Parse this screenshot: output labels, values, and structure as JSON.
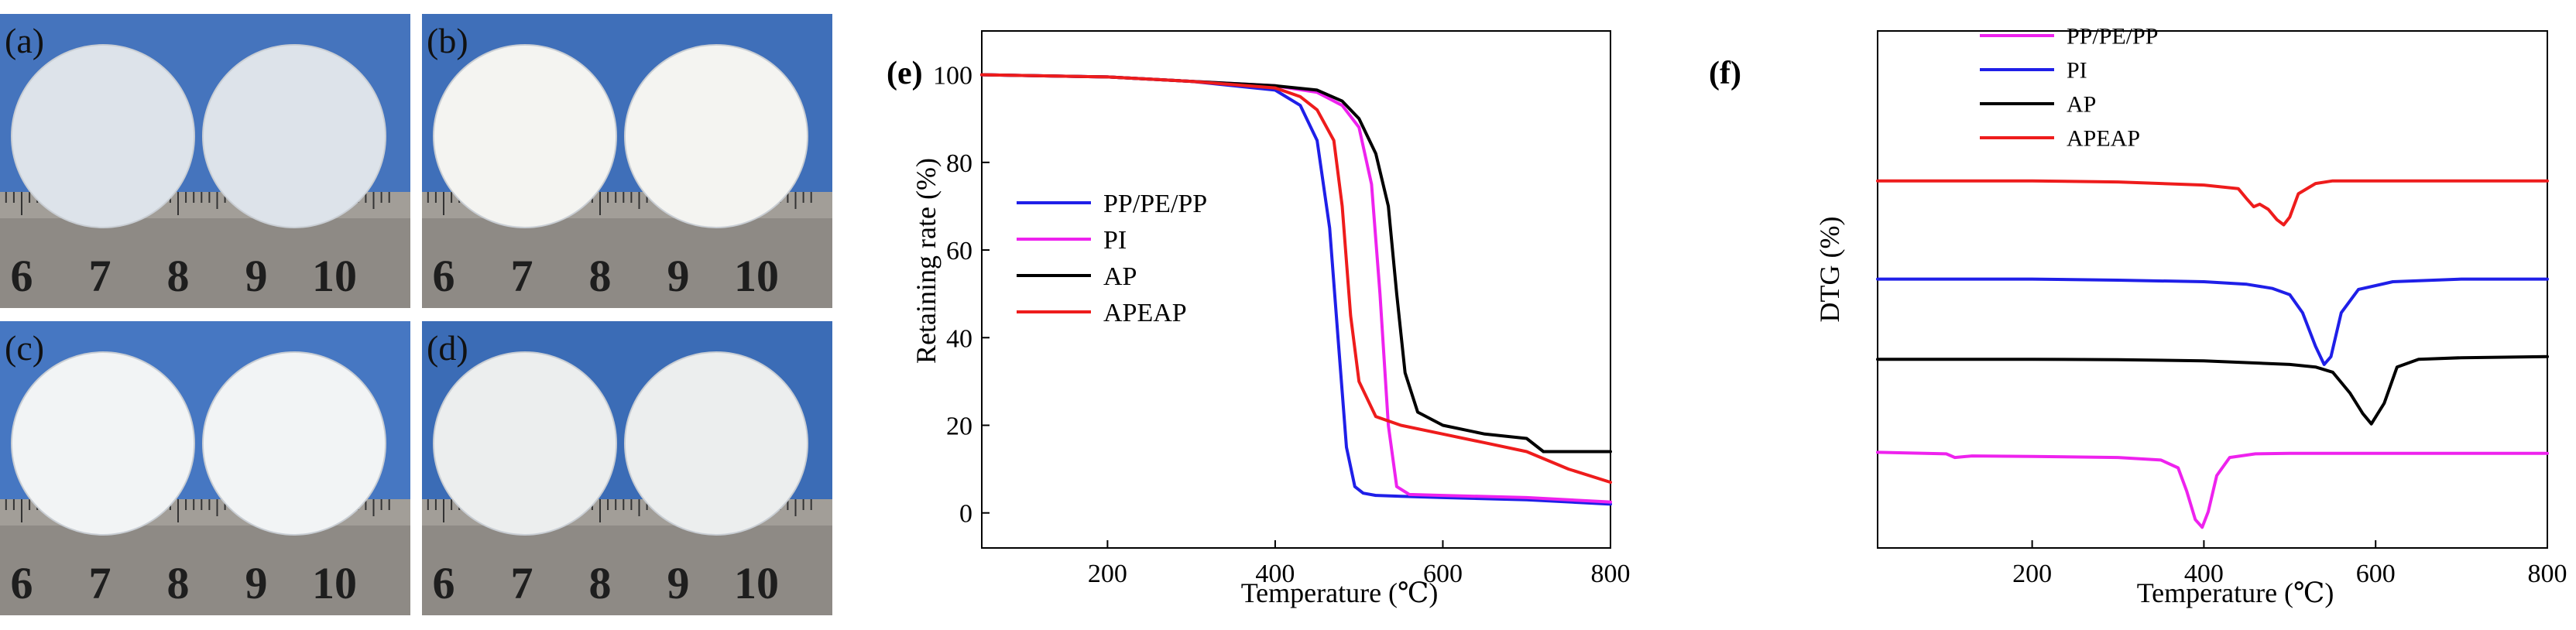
{
  "photos": [
    {
      "label": "(a)",
      "ruler_numbers": [
        "6",
        "7",
        "8",
        "9",
        "10"
      ],
      "bg": "#4574bd",
      "disc": "#dde3ea"
    },
    {
      "label": "(b)",
      "ruler_numbers": [
        "6",
        "7",
        "8",
        "9",
        "10"
      ],
      "bg": "#3f6fb9",
      "disc": "#f4f4f1"
    },
    {
      "label": "(c)",
      "ruler_numbers": [
        "6",
        "7",
        "8",
        "9",
        "10"
      ],
      "bg": "#4677c2",
      "disc": "#f2f4f5"
    },
    {
      "label": "(d)",
      "ruler_numbers": [
        "6",
        "7",
        "8",
        "9",
        "10"
      ],
      "bg": "#3b6cb6",
      "disc": "#eceeee"
    }
  ],
  "chart_data": [
    {
      "panel_label": "(e)",
      "type": "line",
      "title": "",
      "xlabel": "Temperature (℃)",
      "ylabel": "Retaining rate (%)",
      "xlim": [
        50,
        800
      ],
      "ylim": [
        -8,
        110
      ],
      "xticks": [
        200,
        400,
        600,
        800
      ],
      "yticks": [
        0,
        20,
        40,
        60,
        80,
        100
      ],
      "grid": false,
      "legend_position": "center-left",
      "series": [
        {
          "name": "PP/PE/PP",
          "color": "#1f1fe8",
          "x": [
            50,
            200,
            300,
            400,
            430,
            450,
            465,
            475,
            485,
            495,
            505,
            520,
            550,
            600,
            700,
            800
          ],
          "y": [
            100,
            99.5,
            98.5,
            96.5,
            93,
            85,
            65,
            40,
            15,
            6,
            4.5,
            4,
            3.8,
            3.5,
            3,
            2
          ]
        },
        {
          "name": "PI",
          "color": "#ee22ee",
          "x": [
            50,
            200,
            300,
            400,
            450,
            480,
            500,
            515,
            525,
            535,
            545,
            560,
            600,
            700,
            800
          ],
          "y": [
            100,
            99.5,
            98.5,
            97.5,
            96,
            93,
            88,
            75,
            50,
            20,
            6,
            4.2,
            4,
            3.5,
            2.5
          ]
        },
        {
          "name": "AP",
          "color": "#000000",
          "x": [
            50,
            200,
            300,
            400,
            450,
            480,
            500,
            520,
            535,
            545,
            555,
            570,
            600,
            650,
            700,
            720,
            800
          ],
          "y": [
            100,
            99.5,
            98.5,
            97.5,
            96.5,
            94,
            90,
            82,
            70,
            50,
            32,
            23,
            20,
            18,
            17,
            14,
            14
          ]
        },
        {
          "name": "APEAP",
          "color": "#ee1c1c",
          "x": [
            50,
            200,
            300,
            400,
            430,
            450,
            470,
            480,
            490,
            500,
            520,
            550,
            600,
            650,
            700,
            750,
            800
          ],
          "y": [
            100,
            99.5,
            98.5,
            97,
            95,
            92,
            85,
            70,
            45,
            30,
            22,
            20,
            18,
            16,
            14,
            10,
            7
          ]
        }
      ]
    },
    {
      "panel_label": "(f)",
      "type": "line",
      "title": "",
      "xlabel": "Temperature (℃)",
      "ylabel": "DTG (%)",
      "xlim": [
        20,
        800
      ],
      "ylim": [
        0,
        100
      ],
      "xticks": [
        200,
        400,
        600,
        800
      ],
      "yticks": [],
      "grid": false,
      "legend_position": "top-left",
      "series": [
        {
          "name": "PP/PE/PP",
          "color": "#ee22ee",
          "x": [
            20,
            100,
            110,
            130,
            200,
            300,
            350,
            370,
            380,
            390,
            398,
            405,
            415,
            430,
            460,
            500,
            600,
            700,
            800
          ],
          "y": [
            18.5,
            18.2,
            17.5,
            17.8,
            17.7,
            17.5,
            17,
            15.5,
            11,
            5.5,
            4,
            7,
            14,
            17.5,
            18.2,
            18.3,
            18.3,
            18.3,
            18.3
          ]
        },
        {
          "name": "PI",
          "color": "#1f1fe8",
          "x": [
            20,
            200,
            300,
            400,
            450,
            480,
            500,
            515,
            530,
            540,
            548,
            560,
            580,
            620,
            700,
            800
          ],
          "y": [
            52,
            52,
            51.8,
            51.5,
            51,
            50.2,
            49,
            45.5,
            39,
            35.5,
            37,
            45.5,
            50,
            51.5,
            52,
            52
          ]
        },
        {
          "name": "AP",
          "color": "#000000",
          "x": [
            20,
            200,
            300,
            400,
            500,
            530,
            550,
            570,
            585,
            595,
            610,
            625,
            650,
            700,
            800
          ],
          "y": [
            36.5,
            36.5,
            36.4,
            36.2,
            35.5,
            35,
            34,
            30,
            26,
            24,
            28,
            35,
            36.5,
            36.8,
            37
          ]
        },
        {
          "name": "APEAP",
          "color": "#ee1c1c",
          "x": [
            20,
            200,
            300,
            400,
            440,
            450,
            458,
            465,
            475,
            485,
            493,
            500,
            510,
            530,
            550,
            600,
            700,
            800
          ],
          "y": [
            71,
            71,
            70.8,
            70.2,
            69.5,
            67.5,
            66,
            66.5,
            65.5,
            63.5,
            62.5,
            64,
            68.5,
            70.5,
            71,
            71,
            71,
            71
          ]
        }
      ]
    }
  ]
}
